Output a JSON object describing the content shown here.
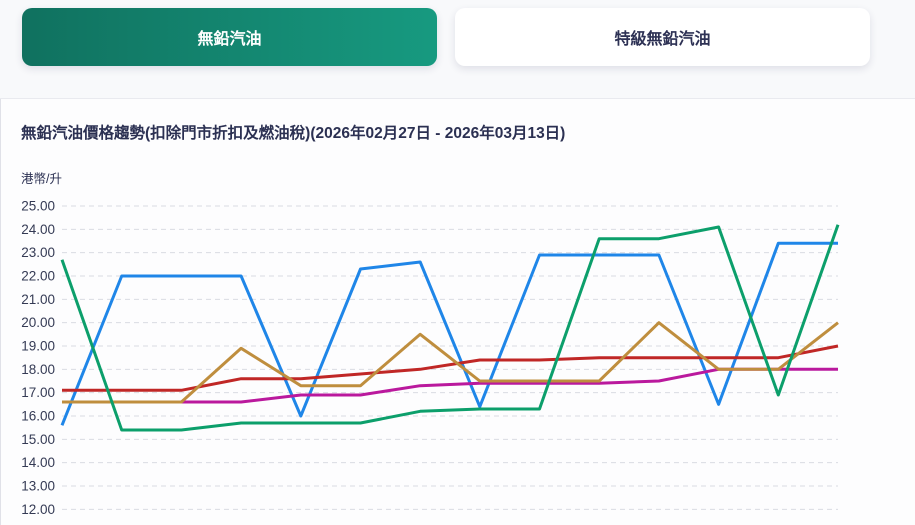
{
  "tabs": [
    {
      "label": "無鉛汽油",
      "active": true
    },
    {
      "label": "特級無鉛汽油",
      "active": false
    }
  ],
  "chart": {
    "title": "無鉛汽油價格趨勢(扣除門市折扣及燃油稅)(2026年02月27日 - 2026年03月13日)",
    "unit_label": "港幣/升"
  },
  "chart_data": {
    "type": "line",
    "title": "無鉛汽油價格趨勢(扣除門市折扣及燃油稅)(2026年02月27日 - 2026年03月13日)",
    "ylabel": "港幣/升",
    "ylim": [
      12,
      25
    ],
    "y_ticks": [
      "25.00",
      "24.00",
      "23.00",
      "22.00",
      "21.00",
      "20.00",
      "19.00",
      "18.00",
      "17.00",
      "16.00",
      "15.00",
      "14.00",
      "13.00",
      "12.00"
    ],
    "x": [
      1,
      2,
      3,
      4,
      5,
      6,
      7,
      8,
      9,
      10,
      11,
      12,
      13,
      14
    ],
    "x_tick_labels_visible": false,
    "grid": "horizontal-dashed",
    "legend_position": "none",
    "markers": "none",
    "series": [
      {
        "name": "blue",
        "color": "#1f86e8",
        "values": [
          15.6,
          22.0,
          22.0,
          22.0,
          16.0,
          22.3,
          22.6,
          16.4,
          22.9,
          22.9,
          22.9,
          16.5,
          23.4,
          23.4
        ]
      },
      {
        "name": "red",
        "color": "#c02726",
        "values": [
          17.1,
          17.1,
          17.1,
          17.6,
          17.6,
          17.8,
          18.0,
          18.4,
          18.4,
          18.5,
          18.5,
          18.5,
          18.5,
          19.0
        ]
      },
      {
        "name": "magenta",
        "color": "#ba199d",
        "values": [
          16.6,
          16.6,
          16.6,
          16.6,
          16.9,
          16.9,
          17.3,
          17.4,
          17.4,
          17.4,
          17.5,
          18.0,
          18.0,
          18.0
        ]
      },
      {
        "name": "gold",
        "color": "#bf8e3e",
        "values": [
          16.6,
          16.6,
          16.6,
          18.9,
          17.3,
          17.3,
          19.5,
          17.5,
          17.5,
          17.5,
          20.0,
          18.0,
          18.0,
          20.0
        ]
      },
      {
        "name": "green",
        "color": "#0c9f6b",
        "values": [
          22.7,
          15.4,
          15.4,
          15.7,
          15.7,
          15.7,
          16.2,
          16.3,
          16.3,
          23.6,
          23.6,
          24.1,
          16.9,
          24.2
        ]
      }
    ],
    "colors": {
      "grid": "#d9dce3",
      "tick_text": "#343a54",
      "active_tab": "#14836f",
      "title_text": "#2b3052"
    }
  }
}
